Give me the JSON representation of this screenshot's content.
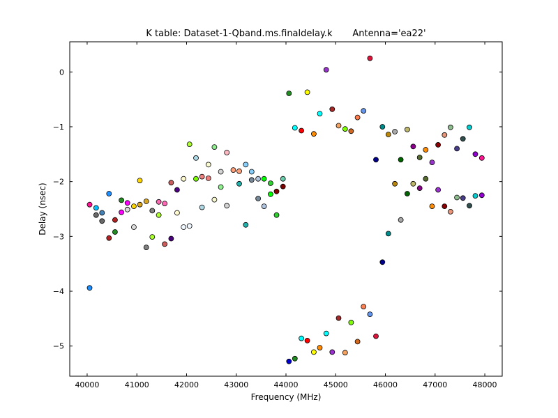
{
  "chart_data": {
    "type": "scatter",
    "title": "K table: Dataset-1-Qband.ms.finaldelay.k       Antenna='ea22'",
    "xlabel": "Frequency (MHz)",
    "ylabel": "Delay (nsec)",
    "xlim": [
      39650,
      48350
    ],
    "ylim": [
      -5.55,
      0.55
    ],
    "xticks": [
      40000,
      41000,
      42000,
      43000,
      44000,
      45000,
      46000,
      47000,
      48000
    ],
    "yticks": [
      0,
      -1,
      -2,
      -3,
      -4,
      -5
    ],
    "grid": false,
    "legend": "none",
    "points": [
      {
        "x": 40050,
        "y": -3.94,
        "c": "#1e90ff"
      },
      {
        "x": 40050,
        "y": -2.42,
        "c": "#ff1493"
      },
      {
        "x": 40180,
        "y": -2.61,
        "c": "#696969"
      },
      {
        "x": 40180,
        "y": -2.48,
        "c": "#00bfff"
      },
      {
        "x": 40300,
        "y": -2.72,
        "c": "#696969"
      },
      {
        "x": 40300,
        "y": -2.57,
        "c": "#4682b4"
      },
      {
        "x": 40440,
        "y": -3.03,
        "c": "#b22222"
      },
      {
        "x": 40440,
        "y": -2.22,
        "c": "#1e90ff"
      },
      {
        "x": 40560,
        "y": -2.92,
        "c": "#228b22"
      },
      {
        "x": 40560,
        "y": -2.7,
        "c": "#b22222"
      },
      {
        "x": 40690,
        "y": -2.56,
        "c": "#ff00ff"
      },
      {
        "x": 40690,
        "y": -2.34,
        "c": "#228b22"
      },
      {
        "x": 40810,
        "y": -2.51,
        "c": "#dcdcdc"
      },
      {
        "x": 40810,
        "y": -2.39,
        "c": "#ff00ff"
      },
      {
        "x": 40940,
        "y": -2.83,
        "c": "#dcdcdc"
      },
      {
        "x": 40940,
        "y": -2.45,
        "c": "#ffd700"
      },
      {
        "x": 41060,
        "y": -2.42,
        "c": "#daa520"
      },
      {
        "x": 41060,
        "y": -1.98,
        "c": "#ffd700"
      },
      {
        "x": 41190,
        "y": -3.2,
        "c": "#808080"
      },
      {
        "x": 41190,
        "y": -2.36,
        "c": "#daa520"
      },
      {
        "x": 41310,
        "y": -3.01,
        "c": "#adff2f"
      },
      {
        "x": 41310,
        "y": -2.53,
        "c": "#808080"
      },
      {
        "x": 41440,
        "y": -2.61,
        "c": "#adff2f"
      },
      {
        "x": 41440,
        "y": -2.37,
        "c": "#ff69b4"
      },
      {
        "x": 41560,
        "y": -3.14,
        "c": "#cd5c5c"
      },
      {
        "x": 41560,
        "y": -2.4,
        "c": "#ff69b4"
      },
      {
        "x": 41690,
        "y": -3.04,
        "c": "#4b0082"
      },
      {
        "x": 41690,
        "y": -2.02,
        "c": "#cd5c5c"
      },
      {
        "x": 41810,
        "y": -2.57,
        "c": "#fffacd"
      },
      {
        "x": 41810,
        "y": -2.15,
        "c": "#4b0082"
      },
      {
        "x": 41940,
        "y": -2.83,
        "c": "#f0f8ff"
      },
      {
        "x": 41940,
        "y": -1.95,
        "c": "#fffacd"
      },
      {
        "x": 42060,
        "y": -2.81,
        "c": "#f0f8ff"
      },
      {
        "x": 42060,
        "y": -1.32,
        "c": "#adff2f"
      },
      {
        "x": 42190,
        "y": -1.95,
        "c": "#7cfc00"
      },
      {
        "x": 42190,
        "y": -1.57,
        "c": "#add8e6"
      },
      {
        "x": 42310,
        "y": -2.47,
        "c": "#add8e6"
      },
      {
        "x": 42310,
        "y": -1.91,
        "c": "#f08080"
      },
      {
        "x": 42440,
        "y": -1.94,
        "c": "#f08080"
      },
      {
        "x": 42440,
        "y": -1.69,
        "c": "#fafad2"
      },
      {
        "x": 42560,
        "y": -2.33,
        "c": "#fafad2"
      },
      {
        "x": 42560,
        "y": -1.37,
        "c": "#90ee90"
      },
      {
        "x": 42690,
        "y": -2.1,
        "c": "#90ee90"
      },
      {
        "x": 42690,
        "y": -1.82,
        "c": "#d3d3d3"
      },
      {
        "x": 42810,
        "y": -2.44,
        "c": "#d3d3d3"
      },
      {
        "x": 42810,
        "y": -1.47,
        "c": "#ffb6c1"
      },
      {
        "x": 42940,
        "y": -1.79,
        "c": "#ffa07a"
      },
      {
        "x": 43060,
        "y": -2.04,
        "c": "#20b2aa"
      },
      {
        "x": 43060,
        "y": -1.81,
        "c": "#ffa07a"
      },
      {
        "x": 43190,
        "y": -2.79,
        "c": "#20b2aa"
      },
      {
        "x": 43190,
        "y": -1.69,
        "c": "#87cefa"
      },
      {
        "x": 43310,
        "y": -1.97,
        "c": "#778899"
      },
      {
        "x": 43310,
        "y": -1.82,
        "c": "#87cefa"
      },
      {
        "x": 43440,
        "y": -2.31,
        "c": "#778899"
      },
      {
        "x": 43440,
        "y": -1.95,
        "c": "#b0c4de"
      },
      {
        "x": 43560,
        "y": -2.45,
        "c": "#b0c4de"
      },
      {
        "x": 43560,
        "y": -1.95,
        "c": "#00ff00"
      },
      {
        "x": 43690,
        "y": -2.23,
        "c": "#00ff00"
      },
      {
        "x": 43690,
        "y": -2.03,
        "c": "#32cd32"
      },
      {
        "x": 43810,
        "y": -2.61,
        "c": "#32cd32"
      },
      {
        "x": 43810,
        "y": -2.18,
        "c": "#800000"
      },
      {
        "x": 43940,
        "y": -2.09,
        "c": "#800000"
      },
      {
        "x": 43940,
        "y": -1.95,
        "c": "#66cdaa"
      },
      {
        "x": 44060,
        "y": -5.28,
        "c": "#0000cd"
      },
      {
        "x": 44060,
        "y": -0.39,
        "c": "#228b22"
      },
      {
        "x": 44180,
        "y": -5.23,
        "c": "#228b22"
      },
      {
        "x": 44180,
        "y": -1.02,
        "c": "#00ffff"
      },
      {
        "x": 44310,
        "y": -4.86,
        "c": "#00ffff"
      },
      {
        "x": 44310,
        "y": -1.07,
        "c": "#ff0000"
      },
      {
        "x": 44430,
        "y": -4.9,
        "c": "#ff0000"
      },
      {
        "x": 44430,
        "y": -0.37,
        "c": "#ffff00"
      },
      {
        "x": 44560,
        "y": -5.11,
        "c": "#ffff00"
      },
      {
        "x": 44560,
        "y": -1.13,
        "c": "#ff8c00"
      },
      {
        "x": 44680,
        "y": -5.03,
        "c": "#ff8c00"
      },
      {
        "x": 44680,
        "y": -0.76,
        "c": "#00ffff"
      },
      {
        "x": 44810,
        "y": -4.77,
        "c": "#00ffff"
      },
      {
        "x": 44810,
        "y": 0.04,
        "c": "#9932cc"
      },
      {
        "x": 44930,
        "y": -5.11,
        "c": "#9932cc"
      },
      {
        "x": 44930,
        "y": -0.68,
        "c": "#a52a2a"
      },
      {
        "x": 45060,
        "y": -4.49,
        "c": "#a52a2a"
      },
      {
        "x": 45060,
        "y": -0.98,
        "c": "#f4a460"
      },
      {
        "x": 45190,
        "y": -5.12,
        "c": "#f4a460"
      },
      {
        "x": 45190,
        "y": -1.04,
        "c": "#7fff00"
      },
      {
        "x": 45310,
        "y": -4.57,
        "c": "#7fff00"
      },
      {
        "x": 45310,
        "y": -1.08,
        "c": "#d2691e"
      },
      {
        "x": 45440,
        "y": -4.92,
        "c": "#d2691e"
      },
      {
        "x": 45440,
        "y": -0.83,
        "c": "#ff7f50"
      },
      {
        "x": 45560,
        "y": -4.28,
        "c": "#ff7f50"
      },
      {
        "x": 45560,
        "y": -0.71,
        "c": "#6495ed"
      },
      {
        "x": 45690,
        "y": -4.42,
        "c": "#6495ed"
      },
      {
        "x": 45690,
        "y": 0.25,
        "c": "#dc143c"
      },
      {
        "x": 45810,
        "y": -4.82,
        "c": "#dc143c"
      },
      {
        "x": 45810,
        "y": -1.6,
        "c": "#00008b"
      },
      {
        "x": 45940,
        "y": -3.47,
        "c": "#00008b"
      },
      {
        "x": 45940,
        "y": -1.0,
        "c": "#008b8b"
      },
      {
        "x": 46060,
        "y": -2.95,
        "c": "#008b8b"
      },
      {
        "x": 46060,
        "y": -1.14,
        "c": "#b8860b"
      },
      {
        "x": 46190,
        "y": -2.04,
        "c": "#b8860b"
      },
      {
        "x": 46190,
        "y": -1.09,
        "c": "#a9a9a9"
      },
      {
        "x": 46310,
        "y": -2.7,
        "c": "#a9a9a9"
      },
      {
        "x": 46310,
        "y": -1.6,
        "c": "#006400"
      },
      {
        "x": 46440,
        "y": -2.22,
        "c": "#006400"
      },
      {
        "x": 46440,
        "y": -1.05,
        "c": "#bdb76b"
      },
      {
        "x": 46560,
        "y": -2.04,
        "c": "#bdb76b"
      },
      {
        "x": 46560,
        "y": -1.36,
        "c": "#8b008b"
      },
      {
        "x": 46690,
        "y": -2.12,
        "c": "#8b008b"
      },
      {
        "x": 46690,
        "y": -1.56,
        "c": "#556b2f"
      },
      {
        "x": 46810,
        "y": -1.95,
        "c": "#556b2f"
      },
      {
        "x": 46810,
        "y": -1.42,
        "c": "#ff8c00"
      },
      {
        "x": 46940,
        "y": -2.45,
        "c": "#ff8c00"
      },
      {
        "x": 46940,
        "y": -1.65,
        "c": "#9932cc"
      },
      {
        "x": 47060,
        "y": -2.15,
        "c": "#9932cc"
      },
      {
        "x": 47060,
        "y": -1.33,
        "c": "#8b0000"
      },
      {
        "x": 47190,
        "y": -2.45,
        "c": "#8b0000"
      },
      {
        "x": 47190,
        "y": -1.15,
        "c": "#e9967a"
      },
      {
        "x": 47310,
        "y": -2.55,
        "c": "#e9967a"
      },
      {
        "x": 47310,
        "y": -1.01,
        "c": "#8fbc8f"
      },
      {
        "x": 47440,
        "y": -2.29,
        "c": "#8fbc8f"
      },
      {
        "x": 47440,
        "y": -1.4,
        "c": "#483d8b"
      },
      {
        "x": 47560,
        "y": -2.3,
        "c": "#483d8b"
      },
      {
        "x": 47560,
        "y": -1.22,
        "c": "#2f4f4f"
      },
      {
        "x": 47690,
        "y": -2.44,
        "c": "#2f4f4f"
      },
      {
        "x": 47690,
        "y": -1.01,
        "c": "#00ced1"
      },
      {
        "x": 47810,
        "y": -2.26,
        "c": "#00ced1"
      },
      {
        "x": 47810,
        "y": -1.5,
        "c": "#9400d3"
      },
      {
        "x": 47940,
        "y": -2.25,
        "c": "#9400d3"
      },
      {
        "x": 47940,
        "y": -1.57,
        "c": "#ff1493"
      }
    ]
  }
}
